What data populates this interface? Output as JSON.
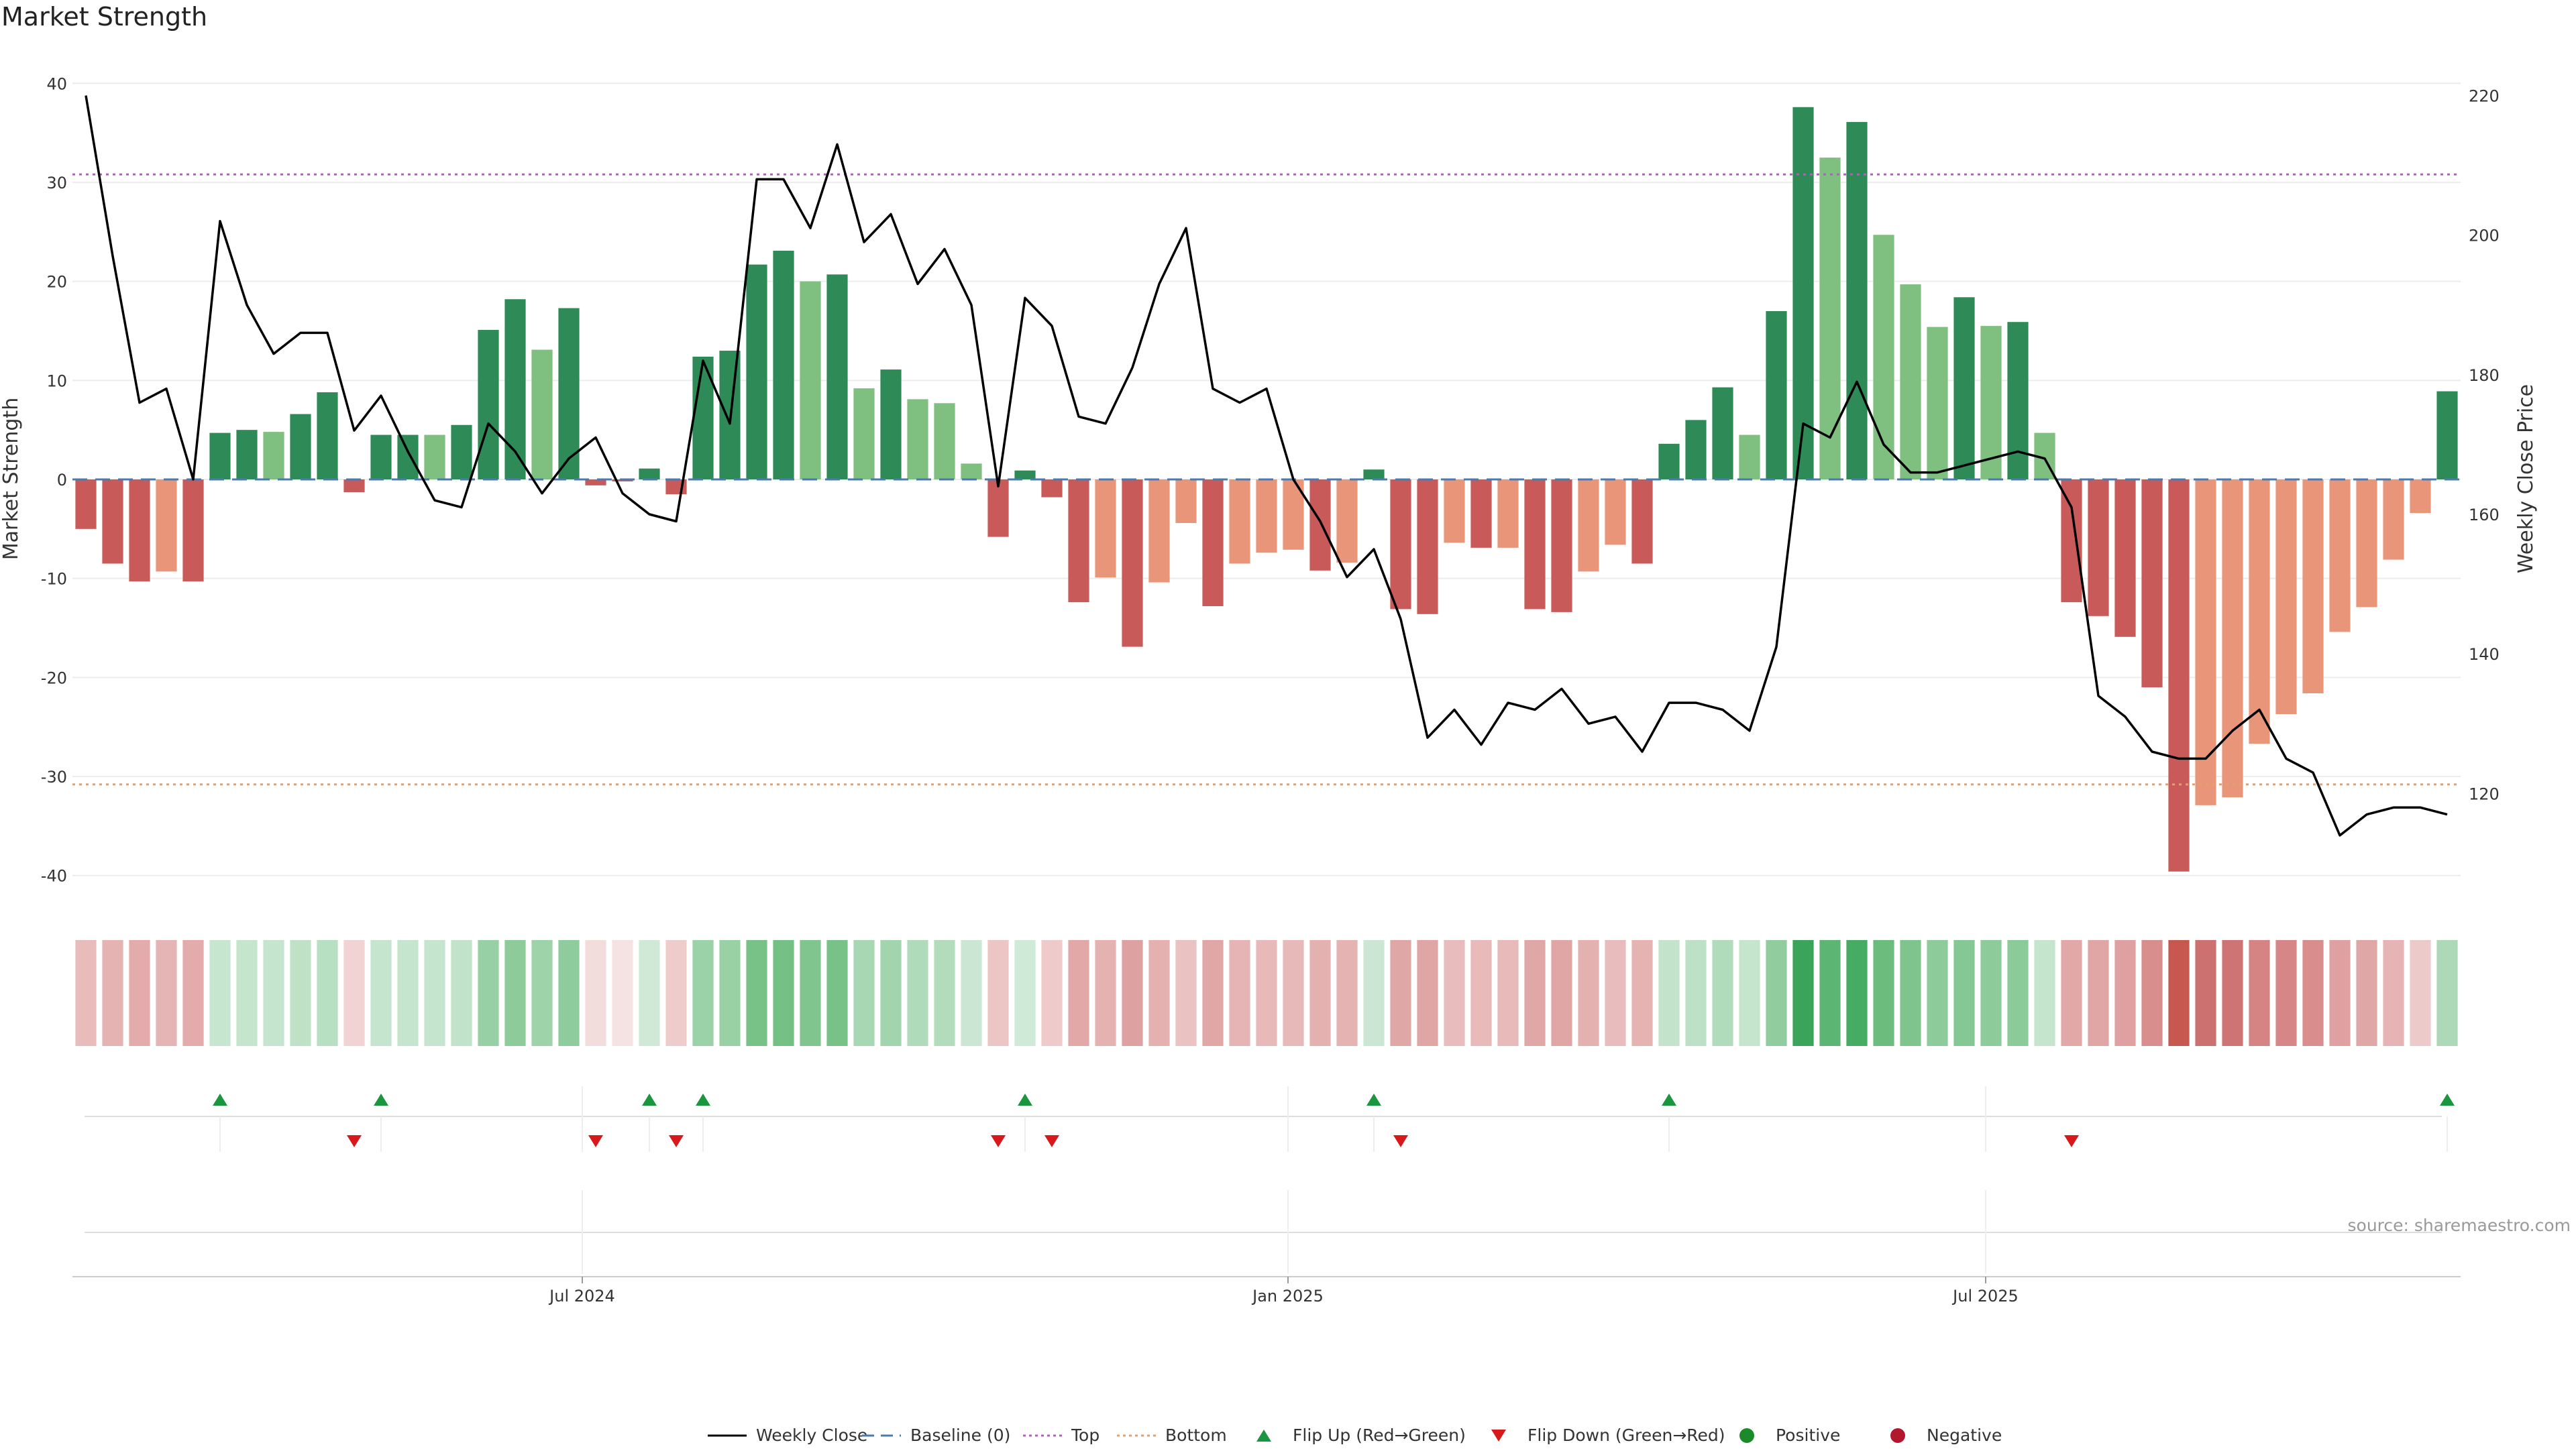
{
  "chart_data": {
    "type": "bar",
    "title": "Market Strength",
    "ylabel": "Market Strength",
    "y2label": "Weekly Close Price",
    "ylim": [
      -43,
      43
    ],
    "y2lim": [
      104,
      226
    ],
    "yticks": [
      -40,
      -30,
      -20,
      -10,
      0,
      10,
      20,
      30,
      40
    ],
    "y2ticks": [
      120,
      140,
      160,
      180,
      200,
      220
    ],
    "x_ticks": [
      {
        "label": "Jul 2024",
        "week": 18.5
      },
      {
        "label": "Jan 2025",
        "week": 44.8
      },
      {
        "label": "Jul 2025",
        "week": 70.8
      }
    ],
    "top_line": 30.8,
    "bottom_line": -30.8,
    "baseline": 0,
    "strength_values": [
      -5,
      -8.5,
      -10.3,
      -9.3,
      -10.3,
      4.7,
      5,
      4.8,
      6.6,
      8.8,
      -1.3,
      4.5,
      4.5,
      4.5,
      5.5,
      15.1,
      18.2,
      13.1,
      17.3,
      -0.6,
      -0.2,
      1.1,
      -1.5,
      12.4,
      13,
      21.7,
      23.1,
      20,
      20.7,
      9.2,
      11.1,
      8.1,
      7.7,
      1.6,
      -5.8,
      0.9,
      -1.8,
      -12.4,
      -9.9,
      -16.9,
      -10.4,
      -4.4,
      -12.8,
      -8.5,
      -7.4,
      -7.1,
      -9.2,
      -8.4,
      1,
      -13.1,
      -13.6,
      -6.4,
      -6.9,
      -6.9,
      -13.1,
      -13.4,
      -9.3,
      -6.6,
      -8.5,
      3.6,
      6,
      9.3,
      4.5,
      17,
      37.6,
      32.5,
      36.1,
      24.7,
      19.7,
      15.4,
      18.4,
      15.5,
      15.9,
      4.7,
      -12.4,
      -13.8,
      -15.9,
      -21,
      -39.6,
      -32.9,
      -32.1,
      -26.7,
      -23.7,
      -21.6,
      -15.4,
      -12.9,
      -8.1,
      -3.4,
      8.9
    ],
    "bar_colors": [
      "#c85a5a",
      "#c85a5a",
      "#c85a5a",
      "#e8957a",
      "#c85a5a",
      "#2e8b57",
      "#2e8b57",
      "#7fbf7f",
      "#2e8b57",
      "#2e8b57",
      "#c85a5a",
      "#2e8b57",
      "#2e8b57",
      "#7fbf7f",
      "#2e8b57",
      "#2e8b57",
      "#2e8b57",
      "#7fbf7f",
      "#2e8b57",
      "#c85a5a",
      "#c85a5a",
      "#2e8b57",
      "#c85a5a",
      "#2e8b57",
      "#2e8b57",
      "#2e8b57",
      "#2e8b57",
      "#7fbf7f",
      "#2e8b57",
      "#7fbf7f",
      "#2e8b57",
      "#7fbf7f",
      "#7fbf7f",
      "#7fbf7f",
      "#c85a5a",
      "#2e8b57",
      "#c85a5a",
      "#c85a5a",
      "#e8957a",
      "#c85a5a",
      "#e8957a",
      "#e8957a",
      "#c85a5a",
      "#e8957a",
      "#e8957a",
      "#e8957a",
      "#c85a5a",
      "#e8957a",
      "#2e8b57",
      "#c85a5a",
      "#c85a5a",
      "#e8957a",
      "#c85a5a",
      "#e8957a",
      "#c85a5a",
      "#c85a5a",
      "#e8957a",
      "#e8957a",
      "#c85a5a",
      "#2e8b57",
      "#2e8b57",
      "#2e8b57",
      "#7fbf7f",
      "#2e8b57",
      "#2e8b57",
      "#7fbf7f",
      "#2e8b57",
      "#7fbf7f",
      "#7fbf7f",
      "#7fbf7f",
      "#2e8b57",
      "#7fbf7f",
      "#2e8b57",
      "#7fbf7f",
      "#c85a5a",
      "#c85a5a",
      "#c85a5a",
      "#c85a5a",
      "#c85a5a",
      "#e8957a",
      "#e8957a",
      "#e8957a",
      "#e8957a",
      "#e8957a",
      "#e8957a",
      "#e8957a",
      "#e8957a",
      "#e8957a",
      "#2e8b57"
    ],
    "weekly_close": [
      220,
      197,
      176,
      178,
      165,
      202,
      190,
      183,
      186,
      186,
      172,
      177,
      169,
      162,
      161,
      173,
      169,
      163,
      168,
      171,
      163,
      160,
      159,
      182,
      173,
      208,
      208,
      201,
      213,
      199,
      203,
      193,
      198,
      190,
      164,
      191,
      187,
      174,
      173,
      181,
      193,
      201,
      178,
      176,
      178,
      165,
      159,
      151,
      155,
      145,
      128,
      132,
      127,
      133,
      132,
      135,
      130,
      131,
      126,
      133,
      133,
      132,
      129,
      141,
      173,
      171,
      179,
      170,
      166,
      166,
      167,
      168,
      169,
      168,
      161,
      134,
      131,
      126,
      125,
      125,
      129,
      132,
      125,
      123,
      114,
      117,
      118,
      118,
      117
    ],
    "flip_up_weeks": [
      5,
      11,
      21,
      23,
      35,
      48,
      59,
      88
    ],
    "flip_down_weeks": [
      10,
      19,
      22,
      34,
      36,
      49,
      74
    ],
    "heat_strip_colors": [
      "#e9bcbc",
      "#e6b3b3",
      "#e3abab",
      "#e5b5b5",
      "#e3abab",
      "#c7e6cf",
      "#c5e5cd",
      "#c6e5ce",
      "#bfe2c7",
      "#b7dfc1",
      "#f1d3d3",
      "#c6e5ce",
      "#c6e5ce",
      "#c6e5ce",
      "#c1e3c9",
      "#97d0a4",
      "#8dcb9b",
      "#9ed3aa",
      "#8fcc9d",
      "#f3dcdc",
      "#f5e3e3",
      "#cfe9d6",
      "#efcccc",
      "#9bd2a8",
      "#99d1a5",
      "#79c287",
      "#75c084",
      "#7fc58d",
      "#79c287",
      "#a8d7b3",
      "#a2d4ae",
      "#b0dbbb",
      "#b2dcbc",
      "#cbe7d3",
      "#ecc5c5",
      "#d0ead8",
      "#efcaca",
      "#e2a8a8",
      "#e5b2b2",
      "#dea1a1",
      "#e4b0b0",
      "#ebc2c2",
      "#e1a6a6",
      "#e6b4b4",
      "#e8b9b9",
      "#e8b9b9",
      "#e4b1b1",
      "#e6b3b3",
      "#cbe7d3",
      "#e0a7a7",
      "#e0a5a5",
      "#e8bcbc",
      "#e8baba",
      "#e8baba",
      "#e0a7a7",
      "#e0a6a6",
      "#e4b1b1",
      "#e8bcbc",
      "#e6b3b3",
      "#c3e4cb",
      "#bde1c6",
      "#b1dcbc",
      "#c5e5cd",
      "#90cc9e",
      "#3aa55a",
      "#5db574",
      "#46ab63",
      "#6bbc7d",
      "#7ec48c",
      "#8dcb9b",
      "#85c795",
      "#8dcb9b",
      "#8bcb99",
      "#c5e5cd",
      "#e2a8a8",
      "#e0a6a6",
      "#dea0a0",
      "#d98e8e",
      "#c6584f",
      "#cd7070",
      "#cf7474",
      "#d58383",
      "#d68686",
      "#d98d8d",
      "#dea0a0",
      "#e0a7a7",
      "#e6b4b4",
      "#eccaca",
      "#aed9b8"
    ],
    "source_note": "source: sharemaestro.com",
    "legend": [
      {
        "label": "Weekly Close",
        "symbol": "line",
        "color": "#000000"
      },
      {
        "label": "Baseline (0)",
        "symbol": "dash",
        "color": "#4a7bb0"
      },
      {
        "label": "Top",
        "symbol": "dot",
        "color": "#b060c0"
      },
      {
        "label": "Bottom",
        "symbol": "dot",
        "color": "#e0a070"
      },
      {
        "label": "Flip Up (Red→Green)",
        "symbol": "triangle-up",
        "color": "#1a9641"
      },
      {
        "label": "Flip Down (Green→Red)",
        "symbol": "triangle-down",
        "color": "#d7191c"
      },
      {
        "label": "Positive",
        "symbol": "circle",
        "color": "#1a8a2a"
      },
      {
        "label": "Negative",
        "symbol": "circle",
        "color": "#b2182b"
      }
    ],
    "colors": {
      "flip_up": "#1a9641",
      "flip_down": "#d7191c",
      "top_line": "#b060c0",
      "bottom_line": "#e0a070",
      "baseline": "#4a7bb0",
      "price_line": "#000000"
    }
  }
}
